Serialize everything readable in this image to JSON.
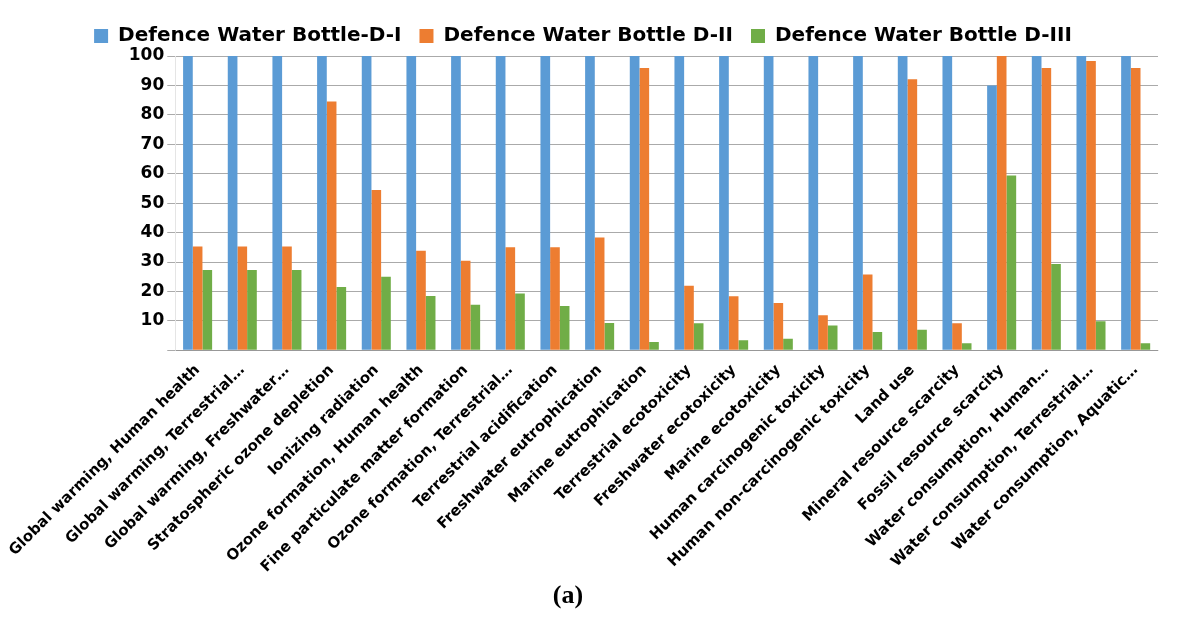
{
  "chart_data": {
    "type": "bar",
    "categories": [
      "Global warming, Human health",
      "Global warming, Terrestrial…",
      "Global warming, Freshwater…",
      "Stratospheric ozone depletion",
      "Ionizing radiation",
      "Ozone formation, Human health",
      "Fine particulate matter formation",
      "Ozone formation, Terrestrial…",
      "Terrestrial acidification",
      "Freshwater eutrophication",
      "Marine eutrophication",
      "Terrestrial ecotoxicity",
      "Freshwater ecotoxicity",
      "Marine ecotoxicity",
      "Human carcinogenic toxicity",
      "Human non-carcinogenic toxicity",
      "Land use",
      "Mineral resource scarcity",
      "Fossil resource scarcity",
      "Water consumption, Human…",
      "Water consumption, Terrestrial…",
      "Water consumption, Aquatic…"
    ],
    "series": [
      {
        "name": "Defence Water Bottle-D-I",
        "color": "#5b9bd5",
        "values": [
          100,
          100,
          100,
          100,
          100,
          100,
          100,
          100,
          100,
          100,
          100,
          100,
          100,
          100,
          100,
          100,
          100,
          100,
          90,
          100,
          100,
          100
        ]
      },
      {
        "name": "Defence Water Bottle D-II",
        "color": "#ed7d31",
        "values": [
          35.3,
          35.3,
          35.3,
          84.5,
          54.5,
          33.8,
          30.4,
          35,
          35,
          38.3,
          95.9,
          21.9,
          18.4,
          16.1,
          11.9,
          25.8,
          92.1,
          9.2,
          100,
          95.9,
          98.3,
          95.9
        ]
      },
      {
        "name": "Defence Water Bottle D-III",
        "color": "#70ad47",
        "values": [
          27.3,
          27.3,
          27.3,
          21.5,
          25,
          18.5,
          15.5,
          19.3,
          15.1,
          9.3,
          2.8,
          9.2,
          3.4,
          3.9,
          8.4,
          6.2,
          7,
          2.4,
          59.4,
          29.3,
          9.9,
          2.4
        ]
      }
    ],
    "ylim": [
      0,
      100
    ],
    "yticks": [
      {
        "value": 0,
        "label": null
      },
      10,
      20,
      30,
      40,
      50,
      60,
      70,
      80,
      90,
      100
    ],
    "grid": "y",
    "legend": "top",
    "annotations": [
      "(a)"
    ]
  }
}
